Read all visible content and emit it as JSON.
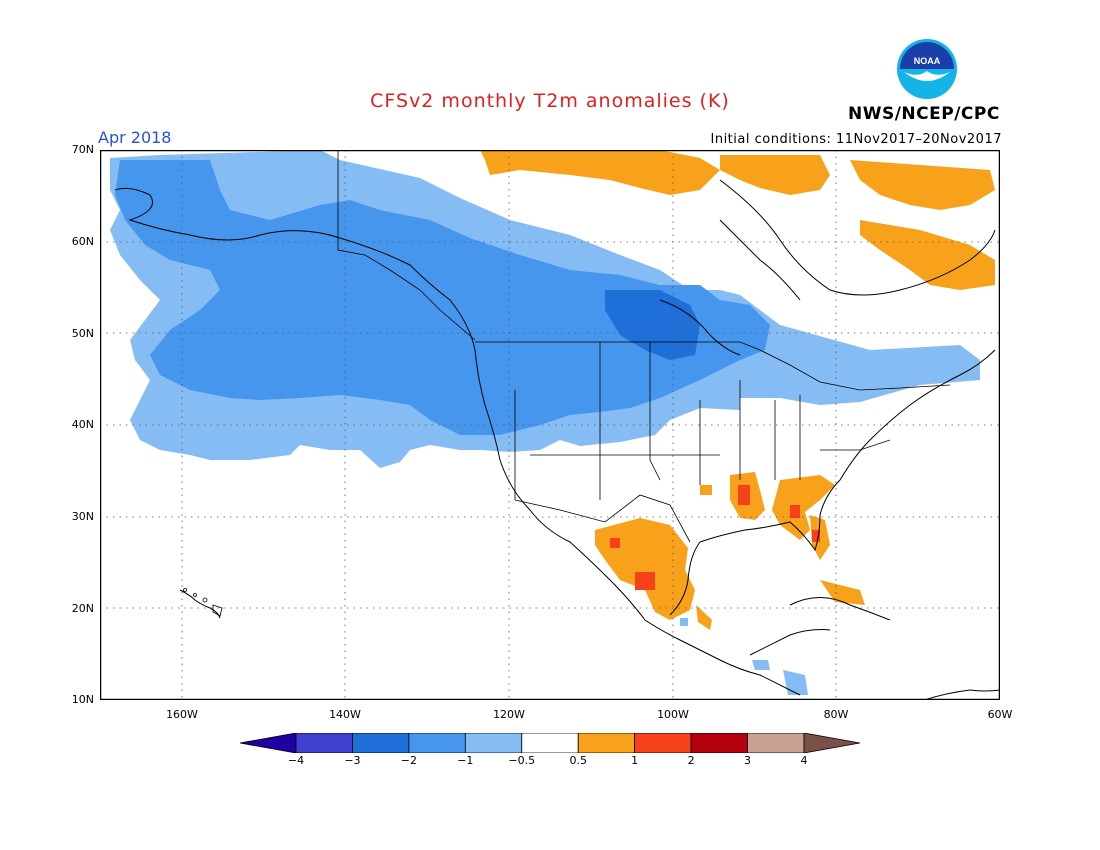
{
  "header": {
    "title": "CFSv2 monthly T2m anomalies (K)",
    "period": "Apr 2018",
    "initial_conditions": "Initial conditions: 11Nov2017–20Nov2017",
    "agency": "NWS/NCEP/CPC",
    "logo_text": "NOAA"
  },
  "map": {
    "lat_labels": [
      "70N",
      "60N",
      "50N",
      "40N",
      "30N",
      "20N",
      "10N"
    ],
    "lon_labels": [
      "160W",
      "140W",
      "120W",
      "100W",
      "80W",
      "60W"
    ],
    "extent": {
      "lon": [
        -170,
        -60
      ],
      "lat": [
        10,
        70
      ]
    },
    "grid": "dotted"
  },
  "colorbar": {
    "labels": [
      "−4",
      "−3",
      "−2",
      "−1",
      "−0.5",
      "0.5",
      "1",
      "2",
      "3",
      "4"
    ],
    "colors": [
      "#2000a0",
      "#4040d0",
      "#1e6fd8",
      "#4696ee",
      "#86bcf4",
      "#ffffff",
      "#f7a21a",
      "#f6411a",
      "#b5000d",
      "#c8a090",
      "#7a5048"
    ]
  },
  "anomaly_regions": [
    {
      "name": "alaska-canada-cool",
      "category": "-1"
    },
    {
      "name": "central-canada-cool",
      "category": "-2"
    },
    {
      "name": "hudson-bay-cold",
      "category": "-3"
    },
    {
      "name": "northern-plains-cool",
      "category": "-2"
    },
    {
      "name": "greenland-warm",
      "category": "0.5"
    },
    {
      "name": "southeast-us-warm",
      "category": "0.5"
    },
    {
      "name": "mexico-warm",
      "category": "0.5"
    }
  ]
}
